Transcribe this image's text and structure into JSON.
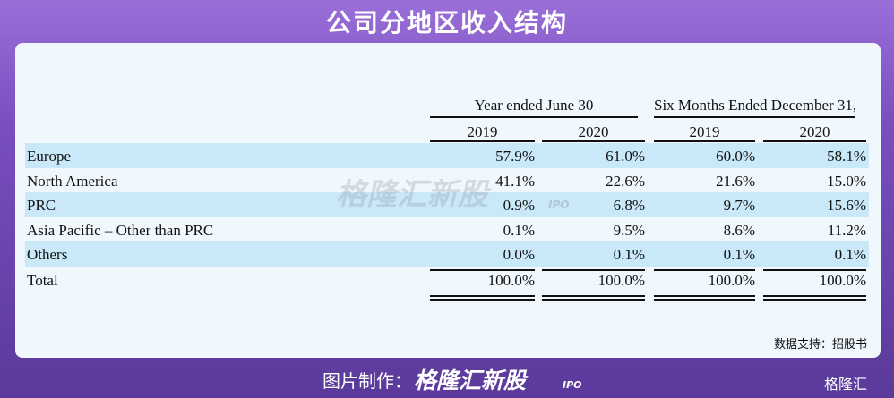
{
  "header": {
    "title": "公司分地区收入结构"
  },
  "table": {
    "groups": [
      "Year ended June 30",
      "Six Months Ended December 31,"
    ],
    "years": [
      "2019",
      "2020",
      "2019",
      "2020"
    ],
    "rows": [
      [
        "Europe",
        "57.9%",
        "61.0%",
        "60.0%",
        "58.1%"
      ],
      [
        "North America",
        "41.1%",
        "22.6%",
        "21.6%",
        "15.0%"
      ],
      [
        "PRC",
        "0.9%",
        "6.8%",
        "9.7%",
        "15.6%"
      ],
      [
        "Asia Pacific – Other than PRC",
        "0.1%",
        "9.5%",
        "8.6%",
        "11.2%"
      ],
      [
        "Others",
        "0.0%",
        "0.1%",
        "0.1%",
        "0.1%"
      ],
      [
        "Total",
        "100.0%",
        "100.0%",
        "100.0%",
        "100.0%"
      ]
    ]
  },
  "watermark": {
    "name": "格隆汇新股",
    "tag": "IPO"
  },
  "source": "数据支持：招股书",
  "footer": {
    "prefix": "图片制作：",
    "brand": "格隆汇新股",
    "tag": "IPO",
    "logo": "格隆汇"
  }
}
